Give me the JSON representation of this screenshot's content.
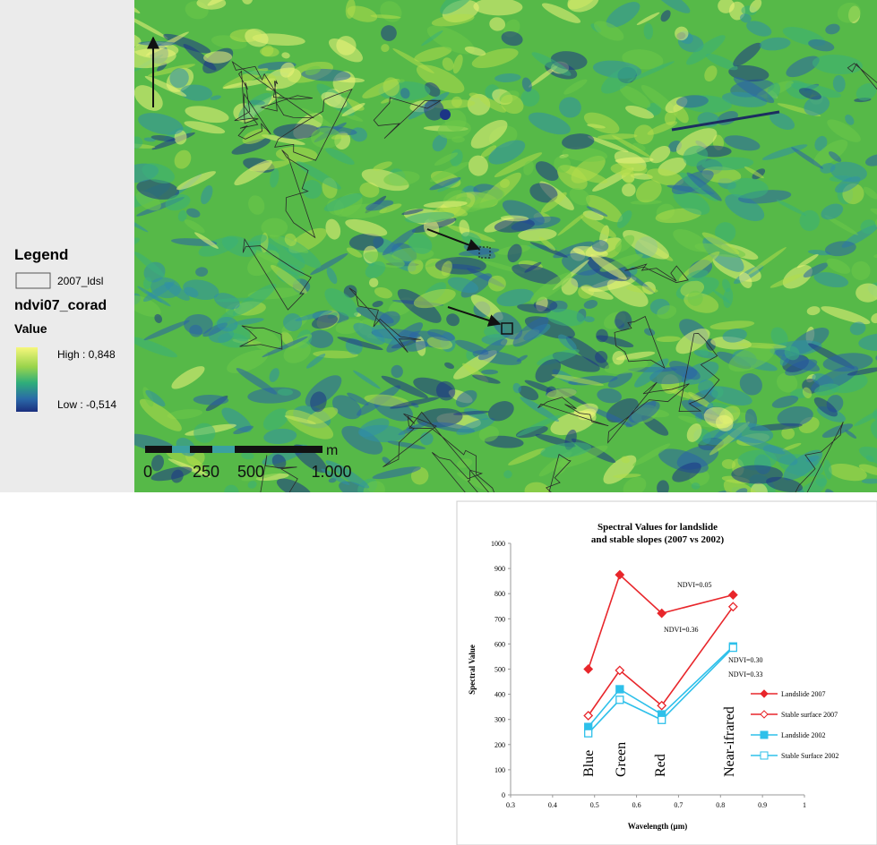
{
  "map": {
    "legend": {
      "title": "Legend",
      "layer": "2007_ldsl",
      "raster": "ndvi07_corad",
      "field": "Value",
      "high": "High : 0,848",
      "low": "Low : -0,514"
    },
    "scale": {
      "labels": [
        "0",
        "250",
        "500",
        "1.000"
      ],
      "unit": "m"
    }
  },
  "chart_data": {
    "type": "line",
    "title": [
      "Spectral Values for landslide",
      "and stable slopes (2007 vs 2002)"
    ],
    "xlabel": "Wavelength (µm)",
    "ylabel": "Spectral Value",
    "x": [
      0.485,
      0.56,
      0.66,
      0.83
    ],
    "series": [
      {
        "name": "Landslide 2007",
        "color": "#e8262b",
        "marker": "diamond",
        "filled": true,
        "values": [
          500,
          875,
          722,
          795
        ]
      },
      {
        "name": "Stable surface 2007",
        "color": "#e8262b",
        "marker": "diamond",
        "filled": false,
        "values": [
          315,
          495,
          355,
          748
        ]
      },
      {
        "name": "Landslide 2002",
        "color": "#2ec0ea",
        "marker": "square",
        "filled": true,
        "values": [
          270,
          420,
          320,
          590
        ]
      },
      {
        "name": "Stable Surface 2002",
        "color": "#2ec0ea",
        "marker": "square",
        "filled": false,
        "values": [
          245,
          378,
          298,
          585
        ]
      }
    ],
    "xlim": [
      0.3,
      1
    ],
    "xticks": [
      0.3,
      0.4,
      0.5,
      0.6,
      0.7,
      0.8,
      0.9,
      1
    ],
    "ylim": [
      0,
      1000
    ],
    "yticks": [
      0,
      100,
      200,
      300,
      400,
      500,
      600,
      700,
      800,
      900,
      1000
    ],
    "annotations": [
      "NDVI=0.05",
      "NDVI=0.36",
      "NDVI=0.30",
      "NDVI=0.33"
    ],
    "band_labels": [
      "Blue",
      "Green",
      "Red",
      "Near-ifrared"
    ],
    "legend": "lower right"
  }
}
